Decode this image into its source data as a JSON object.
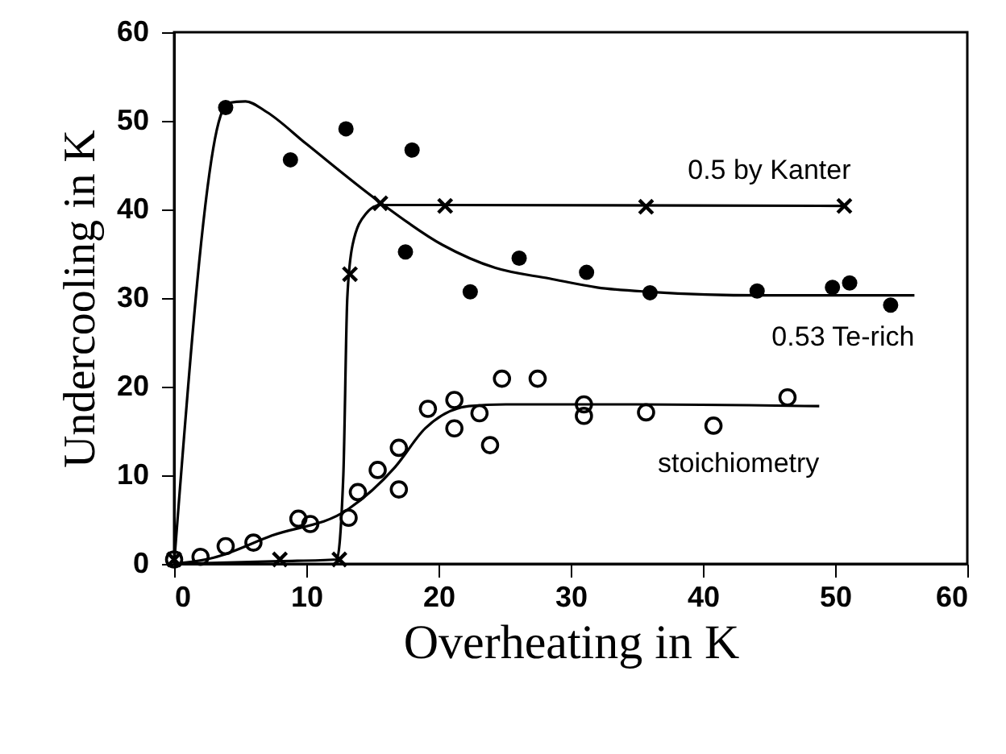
{
  "chart_data": {
    "type": "scatter",
    "xlabel": "Overheating in K",
    "ylabel": "Undercooling in K",
    "xlim": [
      0,
      60
    ],
    "ylim": [
      0,
      60
    ],
    "xticks": [
      0,
      10,
      20,
      30,
      40,
      50,
      60
    ],
    "yticks": [
      0,
      10,
      20,
      30,
      40,
      50,
      60
    ],
    "grid": false,
    "legend": false,
    "series": [
      {
        "type": "line",
        "name": "0.53 Te-rich",
        "color": "#000000",
        "marker": "none",
        "x": [
          0,
          3.5,
          4,
          5.4,
          7,
          10,
          15.4,
          20.3,
          24.3,
          28.4,
          32,
          36,
          44.4,
          56
        ],
        "values": [
          0,
          50.5,
          52,
          52.2,
          51,
          47.4,
          41,
          36,
          33.4,
          32.2,
          31.2,
          30.7,
          30.3,
          30.3
        ]
      },
      {
        "type": "line",
        "name": "0.5 by Kanter",
        "color": "#000000",
        "marker": "none",
        "x": [
          0,
          8,
          12.3,
          12.8,
          13.1,
          13.5,
          14.5,
          15.6,
          20,
          50.7
        ],
        "values": [
          0,
          0.3,
          0.5,
          10,
          30,
          36,
          39.5,
          40.5,
          40.5,
          40.4
        ]
      },
      {
        "type": "line",
        "name": "stoichiometry",
        "color": "#000000",
        "marker": "none",
        "x": [
          0,
          3,
          7.4,
          13.2,
          16.7,
          19,
          22.3,
          25.1,
          35,
          48.8
        ],
        "values": [
          0,
          0.7,
          3.2,
          6.2,
          10.9,
          15.3,
          17.8,
          18,
          18,
          17.8
        ]
      },
      {
        "color": "#000000",
        "marker": "circle",
        "x": [
          3.9,
          8.8,
          13,
          18,
          17.5,
          22.4,
          26.1,
          31.2,
          36,
          44.1,
          49.8,
          51.1,
          54.2
        ],
        "values": [
          51.5,
          45.6,
          49.1,
          46.7,
          35.2,
          30.7,
          34.5,
          32.9,
          30.6,
          30.8,
          31.2,
          31.7,
          29.2
        ]
      },
      {
        "color": "#000000",
        "marker": "cross",
        "x": [
          0,
          8,
          12.5,
          13.3,
          15.6,
          20.5,
          35.7,
          50.7
        ],
        "values": [
          0.5,
          0.5,
          0.5,
          32.7,
          40.7,
          40.4,
          40.3,
          40.4
        ]
      },
      {
        "color": "#000000",
        "marker": "circle",
        "x": [
          0,
          2,
          3.9,
          6,
          9.4,
          10.3,
          13.2,
          13.9,
          15.4,
          17,
          17,
          19.2,
          21.2,
          21.2,
          23.1,
          23.9,
          24.8,
          27.5,
          31,
          31,
          35.7,
          40.8,
          46.4
        ],
        "values": [
          0.5,
          0.8,
          2,
          2.4,
          5.1,
          4.5,
          5.2,
          8.1,
          10.6,
          8.4,
          13.1,
          17.5,
          18.5,
          15.3,
          17,
          13.4,
          20.9,
          20.9,
          18,
          16.7,
          17.1,
          15.6,
          18.8
        ]
      }
    ]
  }
}
